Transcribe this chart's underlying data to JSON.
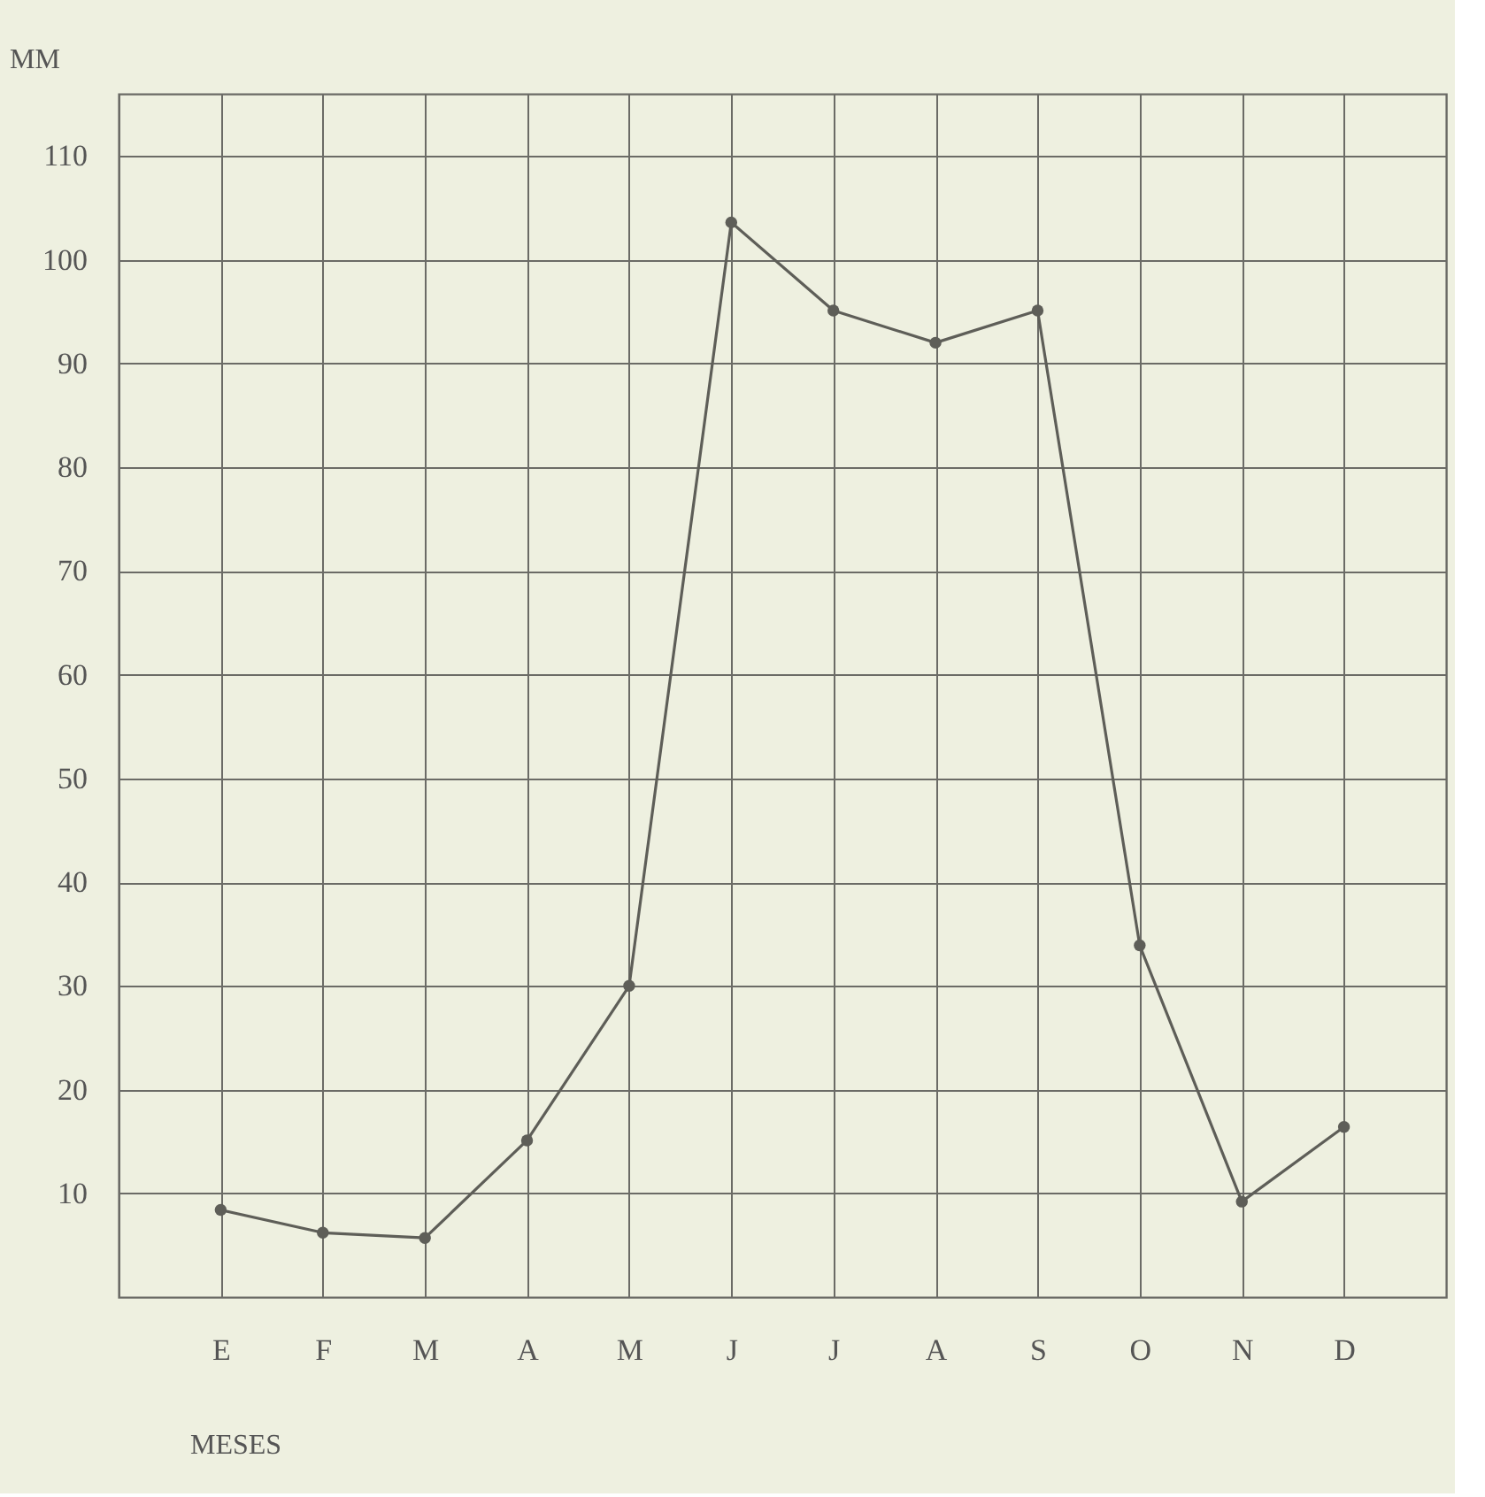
{
  "chart_data": {
    "type": "line",
    "xlabel": "MESES",
    "ylabel": "MM",
    "categories": [
      "E",
      "F",
      "M",
      "A",
      "M",
      "J",
      "J",
      "A",
      "S",
      "O",
      "N",
      "D"
    ],
    "series": [
      {
        "color": "#5e5e58",
        "values": [
          8.4,
          6.2,
          5.7,
          15.1,
          30,
          103.6,
          95.1,
          92.0,
          95.1,
          33.9,
          9.2,
          16.4
        ]
      }
    ],
    "ylim": [
      0,
      116
    ],
    "yticks": [
      10,
      20,
      30,
      40,
      50,
      60,
      70,
      80,
      90,
      100,
      110
    ],
    "grid": true,
    "marker": "circle",
    "line_style": "solid"
  }
}
